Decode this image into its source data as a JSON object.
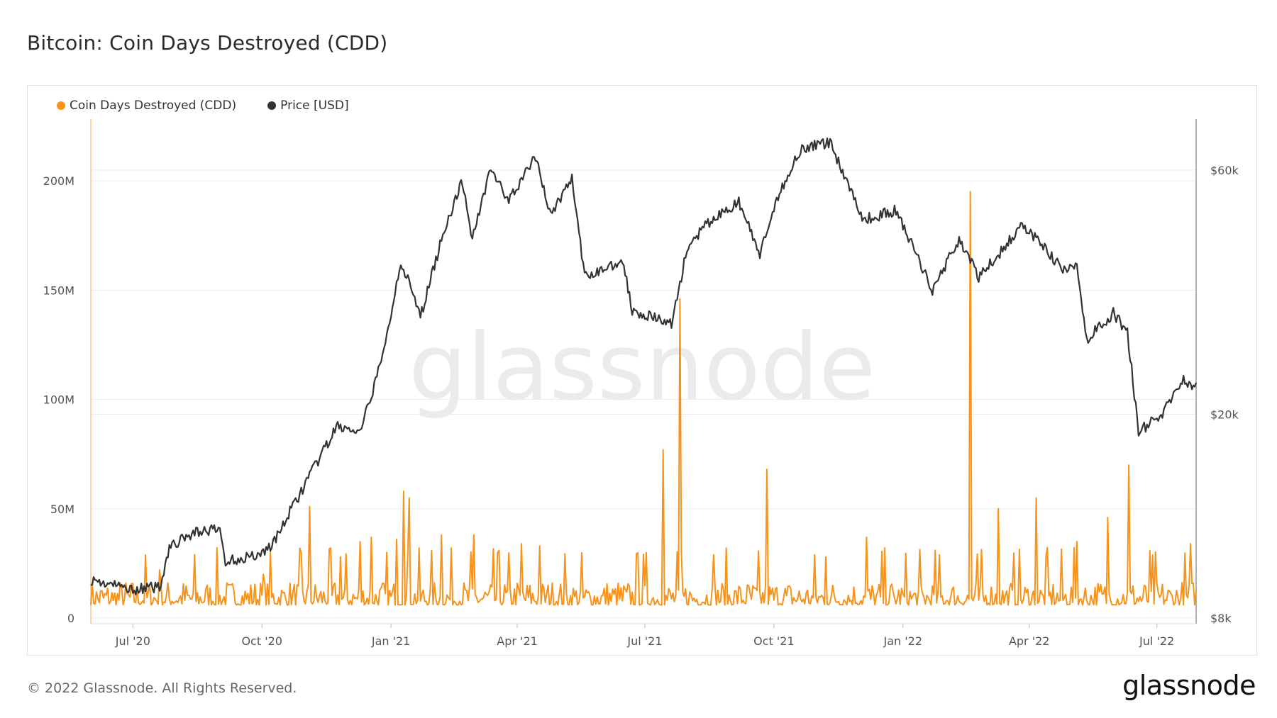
{
  "title": "Bitcoin: Coin Days Destroyed (CDD)",
  "footer": {
    "copyright": "© 2022 Glassnode. All Rights Reserved.",
    "logo": "glassnode"
  },
  "watermark": "glassnode",
  "colors": {
    "cdd": "#f7931a",
    "price": "#333333",
    "grid": "#ececec"
  },
  "chart_data": {
    "type": "line",
    "legend_position": "top-left",
    "grid": true,
    "series": [
      {
        "name": "Coin Days Destroyed (CDD)",
        "axis": "left",
        "ylim": [
          0,
          225000000
        ],
        "y_ticks": [
          0,
          50000000,
          100000000,
          150000000,
          200000000
        ],
        "y_tick_labels": [
          "0",
          "50M",
          "100M",
          "150M",
          "200M"
        ],
        "baseline": 6000000,
        "noise_amp": 12000000,
        "spikes": [
          {
            "date": "2020-06-17",
            "value": 8000000
          },
          {
            "date": "2020-07-20",
            "value": 22000000
          },
          {
            "date": "2020-10-02",
            "value": 20000000
          },
          {
            "date": "2020-11-04",
            "value": 51000000
          },
          {
            "date": "2020-11-26",
            "value": 28000000
          },
          {
            "date": "2020-12-10",
            "value": 35000000
          },
          {
            "date": "2020-12-18",
            "value": 37000000
          },
          {
            "date": "2021-01-05",
            "value": 36000000
          },
          {
            "date": "2021-01-10",
            "value": 58000000
          },
          {
            "date": "2021-01-14",
            "value": 55000000
          },
          {
            "date": "2021-02-06",
            "value": 38000000
          },
          {
            "date": "2021-03-01",
            "value": 38000000
          },
          {
            "date": "2021-04-04",
            "value": 34000000
          },
          {
            "date": "2021-04-17",
            "value": 33000000
          },
          {
            "date": "2021-07-14",
            "value": 77000000
          },
          {
            "date": "2021-07-26",
            "value": 146000000
          },
          {
            "date": "2021-08-19",
            "value": 29000000
          },
          {
            "date": "2021-09-26",
            "value": 68000000
          },
          {
            "date": "2021-11-07",
            "value": 28000000
          },
          {
            "date": "2021-12-06",
            "value": 37000000
          },
          {
            "date": "2022-02-18",
            "value": 195000000
          },
          {
            "date": "2022-03-10",
            "value": 50000000
          },
          {
            "date": "2022-04-06",
            "value": 55000000
          },
          {
            "date": "2022-05-05",
            "value": 35000000
          },
          {
            "date": "2022-05-27",
            "value": 46000000
          },
          {
            "date": "2022-06-11",
            "value": 70000000
          },
          {
            "date": "2022-07-25",
            "value": 34000000
          }
        ]
      },
      {
        "name": "Price [USD]",
        "axis": "right",
        "ylim": [
          8000,
          66000
        ],
        "y_ticks": [
          8000,
          20000,
          60000
        ],
        "y_tick_labels": [
          "$8k",
          "$20k",
          "$60k"
        ],
        "scale": "log",
        "points": [
          [
            "2020-06-01",
            9500
          ],
          [
            "2020-06-15",
            9300
          ],
          [
            "2020-07-01",
            9100
          ],
          [
            "2020-07-20",
            9200
          ],
          [
            "2020-07-27",
            11000
          ],
          [
            "2020-08-15",
            11800
          ],
          [
            "2020-09-01",
            11900
          ],
          [
            "2020-09-05",
            10300
          ],
          [
            "2020-10-01",
            10700
          ],
          [
            "2020-10-10",
            11300
          ],
          [
            "2020-10-21",
            12900
          ],
          [
            "2020-11-06",
            15500
          ],
          [
            "2020-11-24",
            19000
          ],
          [
            "2020-12-10",
            18300
          ],
          [
            "2020-12-27",
            26500
          ],
          [
            "2021-01-08",
            40000
          ],
          [
            "2021-01-22",
            31000
          ],
          [
            "2021-02-08",
            46000
          ],
          [
            "2021-02-21",
            57000
          ],
          [
            "2021-02-28",
            44000
          ],
          [
            "2021-03-13",
            61000
          ],
          [
            "2021-03-25",
            52000
          ],
          [
            "2021-04-14",
            63500
          ],
          [
            "2021-04-25",
            49000
          ],
          [
            "2021-05-10",
            58000
          ],
          [
            "2021-05-19",
            37000
          ],
          [
            "2021-06-15",
            40000
          ],
          [
            "2021-06-22",
            32000
          ],
          [
            "2021-07-20",
            30000
          ],
          [
            "2021-07-31",
            42000
          ],
          [
            "2021-08-14",
            47000
          ],
          [
            "2021-09-06",
            52000
          ],
          [
            "2021-09-21",
            41000
          ],
          [
            "2021-10-06",
            55000
          ],
          [
            "2021-10-20",
            66000
          ],
          [
            "2021-11-10",
            68000
          ],
          [
            "2021-12-04",
            48000
          ],
          [
            "2021-12-27",
            50000
          ],
          [
            "2022-01-22",
            35000
          ],
          [
            "2022-02-10",
            44000
          ],
          [
            "2022-02-24",
            37000
          ],
          [
            "2022-03-28",
            47000
          ],
          [
            "2022-04-26",
            38000
          ],
          [
            "2022-05-05",
            39000
          ],
          [
            "2022-05-12",
            28000
          ],
          [
            "2022-05-31",
            31500
          ],
          [
            "2022-06-10",
            29000
          ],
          [
            "2022-06-18",
            18500
          ],
          [
            "2022-07-05",
            20000
          ],
          [
            "2022-07-20",
            23500
          ],
          [
            "2022-07-29",
            22500
          ]
        ]
      }
    ],
    "x_range": [
      "2020-06-01",
      "2022-07-29"
    ],
    "x_ticks": [
      "2020-07-01",
      "2020-10-01",
      "2021-01-01",
      "2021-04-01",
      "2021-07-01",
      "2021-10-01",
      "2022-01-01",
      "2022-04-01",
      "2022-07-01"
    ],
    "x_tick_labels": [
      "Jul '20",
      "Oct '20",
      "Jan '21",
      "Apr '21",
      "Jul '21",
      "Oct '21",
      "Jan '22",
      "Apr '22",
      "Jul '22"
    ]
  }
}
